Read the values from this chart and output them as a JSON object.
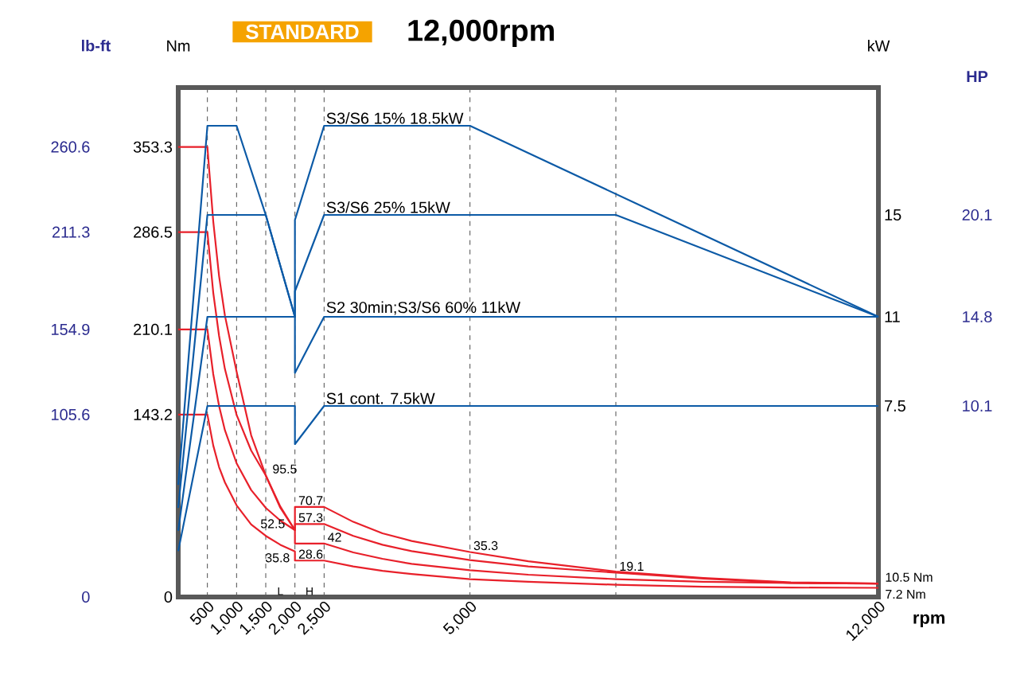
{
  "chart_data": {
    "type": "line",
    "title": "STANDARD",
    "subtitle": "12,000rpm",
    "xlabel": "rpm",
    "xlim": [
      0,
      12000
    ],
    "xticks": [
      {
        "value": 500,
        "label": "500"
      },
      {
        "value": 1000,
        "label": "1,000"
      },
      {
        "value": 1500,
        "label": "1,500"
      },
      {
        "value": 2000,
        "label": "2,000"
      },
      {
        "value": 2500,
        "label": "2,500"
      },
      {
        "value": 5000,
        "label": "5,000"
      },
      {
        "value": 7500,
        "label": null
      },
      {
        "value": 12000,
        "label": "12,000"
      }
    ],
    "ylabel": "Nm",
    "ylim": [
      0,
      400
    ],
    "yticks": [
      0,
      143.2,
      210.1,
      286.5,
      353.3
    ],
    "y2label": "kW",
    "y2lim": [
      0,
      20
    ],
    "y2ticks": [
      7.5,
      11,
      15
    ],
    "y3label": "lb-ft",
    "y3lim": [
      0,
      295
    ],
    "y3ticks": [
      0,
      105.6,
      154.9,
      211.3,
      260.6
    ],
    "grid": "x",
    "series": [
      {
        "name": "S3/S6 15% 18.5kW",
        "axis": "y2",
        "color": "#0c5aa6",
        "x": [
          0,
          500,
          1000,
          1500,
          2000,
          2000,
          2500,
          5000,
          12000
        ],
        "values": [
          4.4,
          18.5,
          18.5,
          15,
          11,
          14.8,
          18.5,
          18.5,
          11
        ]
      },
      {
        "name": "S3/S6 25% 15kW",
        "axis": "y2",
        "color": "#0c5aa6",
        "x": [
          0,
          500,
          1500,
          2000,
          2000,
          2500,
          7500,
          12000
        ],
        "values": [
          3.5,
          15,
          15,
          11,
          12,
          15,
          15,
          11
        ]
      },
      {
        "name": "S2 30min;S3/S6 60% 11kW",
        "axis": "y2",
        "color": "#0c5aa6",
        "x": [
          0,
          500,
          2000,
          2000,
          2500,
          12000
        ],
        "values": [
          2.6,
          11,
          11,
          8.8,
          11,
          11
        ]
      },
      {
        "name": "S1 cont. 7.5kW",
        "axis": "y2",
        "color": "#0c5aa6",
        "x": [
          0,
          500,
          2000,
          2000,
          2500,
          12000
        ],
        "values": [
          1.8,
          7.5,
          7.5,
          6,
          7.5,
          7.5
        ]
      },
      {
        "color": "#e8202a",
        "x": [
          0,
          500,
          600,
          700,
          800,
          1000,
          1250,
          1500,
          1750,
          2000,
          2000,
          2500,
          3000,
          3500,
          4000,
          5000,
          6000,
          7500,
          9000,
          10500,
          12000
        ],
        "values": [
          353.3,
          353.3,
          295,
          252,
          221,
          177,
          127,
          95.5,
          70,
          52.5,
          70.7,
          70.7,
          59,
          50,
          44,
          35.3,
          28,
          20,
          15,
          11.5,
          10.5
        ]
      },
      {
        "color": "#e8202a",
        "x": [
          0,
          500,
          600,
          700,
          800,
          1000,
          1250,
          1500,
          1750,
          2000,
          2000,
          2500,
          3000,
          3500,
          4000,
          5000,
          6000,
          7500,
          9000,
          10500,
          12000
        ],
        "values": [
          286.5,
          286.5,
          239,
          205,
          179,
          143,
          115,
          95.5,
          71,
          52.5,
          57.3,
          57.3,
          48,
          41,
          36,
          29,
          24,
          19.1,
          14.5,
          11,
          10.5
        ]
      },
      {
        "color": "#e8202a",
        "x": [
          0,
          500,
          600,
          700,
          800,
          1000,
          1250,
          1500,
          1750,
          2000,
          2000,
          2500,
          3000,
          3500,
          4000,
          5000,
          6000,
          7500,
          9000,
          10500,
          12000
        ],
        "values": [
          210.1,
          210.1,
          175,
          150,
          131,
          105,
          84,
          70,
          60,
          52.5,
          42,
          42,
          35,
          30,
          26,
          21,
          17.5,
          14,
          12,
          11,
          10.5
        ]
      },
      {
        "color": "#e8202a",
        "x": [
          0,
          500,
          600,
          700,
          800,
          1000,
          1250,
          1500,
          1750,
          2000,
          2000,
          2500,
          3000,
          3500,
          4000,
          5000,
          6000,
          7500,
          9000,
          10500,
          12000
        ],
        "values": [
          143.2,
          143.2,
          119,
          102,
          90,
          72,
          57,
          48,
          41,
          35.8,
          28.6,
          28.6,
          24,
          20.5,
          18,
          14,
          12,
          9.6,
          8,
          7.4,
          7.2
        ]
      }
    ],
    "annotations": [
      {
        "text": "95.5",
        "x": 1500,
        "y": 95.5
      },
      {
        "text": "52.5",
        "x": 2000,
        "y": 52.5
      },
      {
        "text": "35.8",
        "x": 2000,
        "y": 35.8
      },
      {
        "text": "70.7",
        "x": 2000,
        "y": 70.7
      },
      {
        "text": "57.3",
        "x": 2000,
        "y": 57.3
      },
      {
        "text": "42",
        "x": 2500,
        "y": 42
      },
      {
        "text": "28.6",
        "x": 2000,
        "y": 28.6
      },
      {
        "text": "35.3",
        "x": 5000,
        "y": 35.3
      },
      {
        "text": "19.1",
        "x": 7500,
        "y": 19.1
      },
      {
        "text": "10.5 Nm",
        "x": 12000,
        "y": 10.5
      },
      {
        "text": "7.2 Nm",
        "x": 12000,
        "y": 7.2
      },
      "L",
      "H",
      "HP",
      "10.1",
      "14.8",
      "20.1"
    ]
  }
}
